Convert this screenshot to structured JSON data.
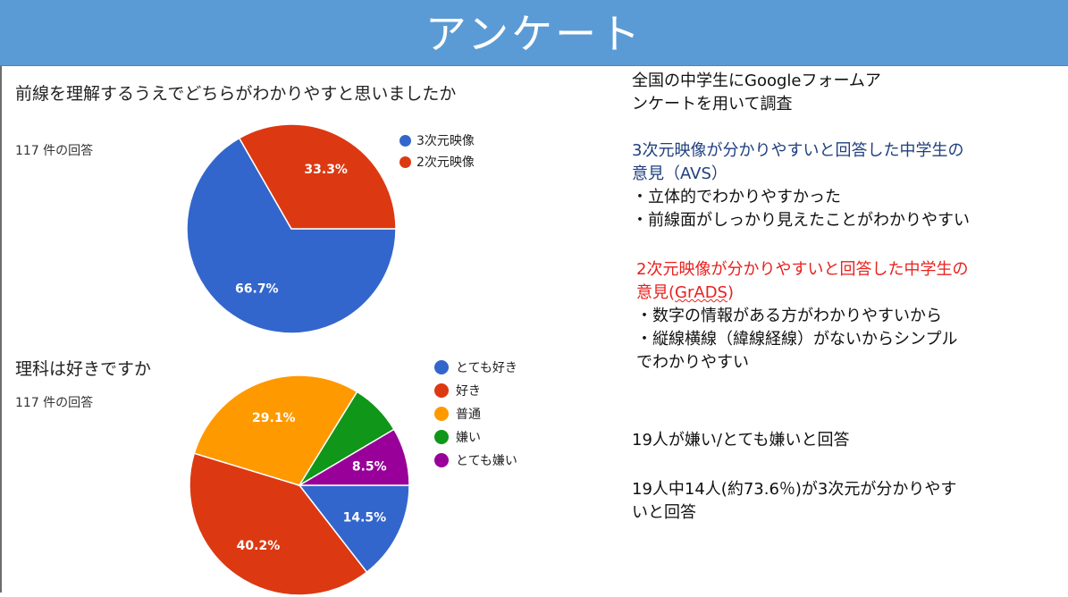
{
  "title": "アンケート",
  "chart_data": [
    {
      "type": "pie",
      "title": "前線を理解するうえでどちらがわかりやすと思いましたか",
      "subtitle": "117 件の回答",
      "labels": [
        "3次元映像",
        "2次元映像"
      ],
      "values": [
        66.7,
        33.3
      ],
      "value_labels": [
        "66.7%",
        "33.3%"
      ],
      "colors": [
        "#3366cc",
        "#dc3912"
      ],
      "legend_position": "right"
    },
    {
      "type": "pie",
      "title": "理科は好きですか",
      "subtitle": "117 件の回答",
      "labels": [
        "とても好き",
        "好き",
        "普通",
        "嫌い",
        "とても嫌い"
      ],
      "values": [
        14.5,
        40.2,
        29.1,
        7.7,
        8.5
      ],
      "value_labels": [
        "14.5%",
        "40.2%",
        "29.1%",
        "",
        "8.5%"
      ],
      "colors": [
        "#3366cc",
        "#dc3912",
        "#ff9900",
        "#109618",
        "#990099"
      ],
      "legend_position": "right"
    }
  ],
  "notes": {
    "intro": [
      "全国の中学生にGoogleフォームア",
      "ンケートを用いて調査"
    ],
    "avs_heading": [
      "3次元映像が分かりやすいと回答した中学生の",
      "意見（AVS）"
    ],
    "avs_points": [
      "・立体的でわかりやすかった",
      "・前線面がしっかり見えたことがわかりやすい"
    ],
    "grads_heading": [
      "2次元映像が分かりやすいと回答した中学生の"
    ],
    "grads_heading_2_prefix": "意見(",
    "grads_heading_2_underlined": "GrADS",
    "grads_heading_2_suffix": ")",
    "grads_points": [
      "・数字の情報がある方がわかりやすいから",
      "・縦線横線（緯線経線）がないからシンプル",
      "でわかりやすい"
    ],
    "dislike_summary": "19人が嫌い/とても嫌いと回答",
    "ratio_summary": [
      "19人中14人(約73.6％)が3次元が分かりやす",
      "いと回答"
    ]
  }
}
